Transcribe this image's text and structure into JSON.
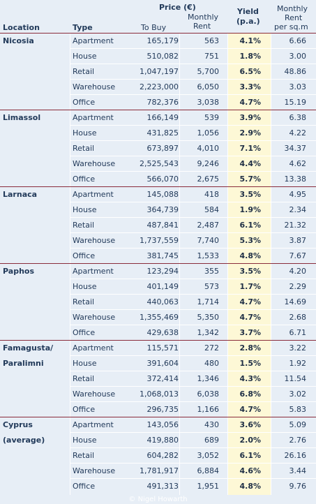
{
  "header": {
    "price_label": "Price (€)",
    "yield_label": "Yield",
    "yield_sub": "(p.a.)",
    "monthly_top": "Monthly",
    "rent_label": "Rent",
    "per_sqm_label": "per sq.m",
    "location_label": "Location",
    "type_label": "Type",
    "to_buy_label": "To Buy",
    "monthly_label": "Monthly",
    "monthly_rent_label": "Rent"
  },
  "groups": [
    {
      "loc1": "Nicosia",
      "loc2": "",
      "rows": [
        {
          "type": "Apartment",
          "buy": "165,179",
          "rent": "563",
          "yield": "4.1%",
          "sqm": "6.66"
        },
        {
          "type": "House",
          "buy": "510,082",
          "rent": "751",
          "yield": "1.8%",
          "sqm": "3.00"
        },
        {
          "type": "Retail",
          "buy": "1,047,197",
          "rent": "5,700",
          "yield": "6.5%",
          "sqm": "48.86"
        },
        {
          "type": "Warehouse",
          "buy": "2,223,000",
          "rent": "6,050",
          "yield": "3.3%",
          "sqm": "3.03"
        },
        {
          "type": "Office",
          "buy": "782,376",
          "rent": "3,038",
          "yield": "4.7%",
          "sqm": "15.19"
        }
      ]
    },
    {
      "loc1": "Limassol",
      "loc2": "",
      "rows": [
        {
          "type": "Apartment",
          "buy": "166,149",
          "rent": "539",
          "yield": "3.9%",
          "sqm": "6.38"
        },
        {
          "type": "House",
          "buy": "431,825",
          "rent": "1,056",
          "yield": "2.9%",
          "sqm": "4.22"
        },
        {
          "type": "Retail",
          "buy": "673,897",
          "rent": "4,010",
          "yield": "7.1%",
          "sqm": "34.37"
        },
        {
          "type": "Warehouse",
          "buy": "2,525,543",
          "rent": "9,246",
          "yield": "4.4%",
          "sqm": "4.62"
        },
        {
          "type": "Office",
          "buy": "566,070",
          "rent": "2,675",
          "yield": "5.7%",
          "sqm": "13.38"
        }
      ]
    },
    {
      "loc1": "Larnaca",
      "loc2": "",
      "rows": [
        {
          "type": "Apartment",
          "buy": "145,088",
          "rent": "418",
          "yield": "3.5%",
          "sqm": "4.95"
        },
        {
          "type": "House",
          "buy": "364,739",
          "rent": "584",
          "yield": "1.9%",
          "sqm": "2.34"
        },
        {
          "type": "Retail",
          "buy": "487,841",
          "rent": "2,487",
          "yield": "6.1%",
          "sqm": "21.32"
        },
        {
          "type": "Warehouse",
          "buy": "1,737,559",
          "rent": "7,740",
          "yield": "5.3%",
          "sqm": "3.87"
        },
        {
          "type": "Office",
          "buy": "381,745",
          "rent": "1,533",
          "yield": "4.8%",
          "sqm": "7.67"
        }
      ]
    },
    {
      "loc1": "Paphos",
      "loc2": "",
      "rows": [
        {
          "type": "Apartment",
          "buy": "123,294",
          "rent": "355",
          "yield": "3.5%",
          "sqm": "4.20"
        },
        {
          "type": "House",
          "buy": "401,149",
          "rent": "573",
          "yield": "1.7%",
          "sqm": "2.29"
        },
        {
          "type": "Retail",
          "buy": "440,063",
          "rent": "1,714",
          "yield": "4.7%",
          "sqm": "14.69"
        },
        {
          "type": "Warehouse",
          "buy": "1,355,469",
          "rent": "5,350",
          "yield": "4.7%",
          "sqm": "2.68"
        },
        {
          "type": "Office",
          "buy": "429,638",
          "rent": "1,342",
          "yield": "3.7%",
          "sqm": "6.71"
        }
      ]
    },
    {
      "loc1": "Famagusta/",
      "loc2": "Paralimni",
      "rows": [
        {
          "type": "Apartment",
          "buy": "115,571",
          "rent": "272",
          "yield": "2.8%",
          "sqm": "3.22"
        },
        {
          "type": "House",
          "buy": "391,604",
          "rent": "480",
          "yield": "1.5%",
          "sqm": "1.92"
        },
        {
          "type": "Retail",
          "buy": "372,414",
          "rent": "1,346",
          "yield": "4.3%",
          "sqm": "11.54"
        },
        {
          "type": "Warehouse",
          "buy": "1,068,013",
          "rent": "6,038",
          "yield": "6.8%",
          "sqm": "3.02"
        },
        {
          "type": "Office",
          "buy": "296,735",
          "rent": "1,166",
          "yield": "4.7%",
          "sqm": "5.83"
        }
      ]
    },
    {
      "loc1": "Cyprus",
      "loc2": "(average)",
      "rows": [
        {
          "type": "Apartment",
          "buy": "143,056",
          "rent": "430",
          "yield": "3.6%",
          "sqm": "5.09"
        },
        {
          "type": "House",
          "buy": "419,880",
          "rent": "689",
          "yield": "2.0%",
          "sqm": "2.76"
        },
        {
          "type": "Retail",
          "buy": "604,282",
          "rent": "3,052",
          "yield": "6.1%",
          "sqm": "26.16"
        },
        {
          "type": "Warehouse",
          "buy": "1,781,917",
          "rent": "6,884",
          "yield": "4.6%",
          "sqm": "3.44"
        },
        {
          "type": "Office",
          "buy": "491,313",
          "rent": "1,951",
          "yield": "4.8%",
          "sqm": "9.76"
        }
      ]
    }
  ],
  "footer": {
    "copyright": "© Nigel Howarth"
  },
  "colors": {
    "background": "#e7eef6",
    "yield_column": "#fdf8d6",
    "group_rule": "#8a2b3a",
    "text": "#223a5a"
  }
}
